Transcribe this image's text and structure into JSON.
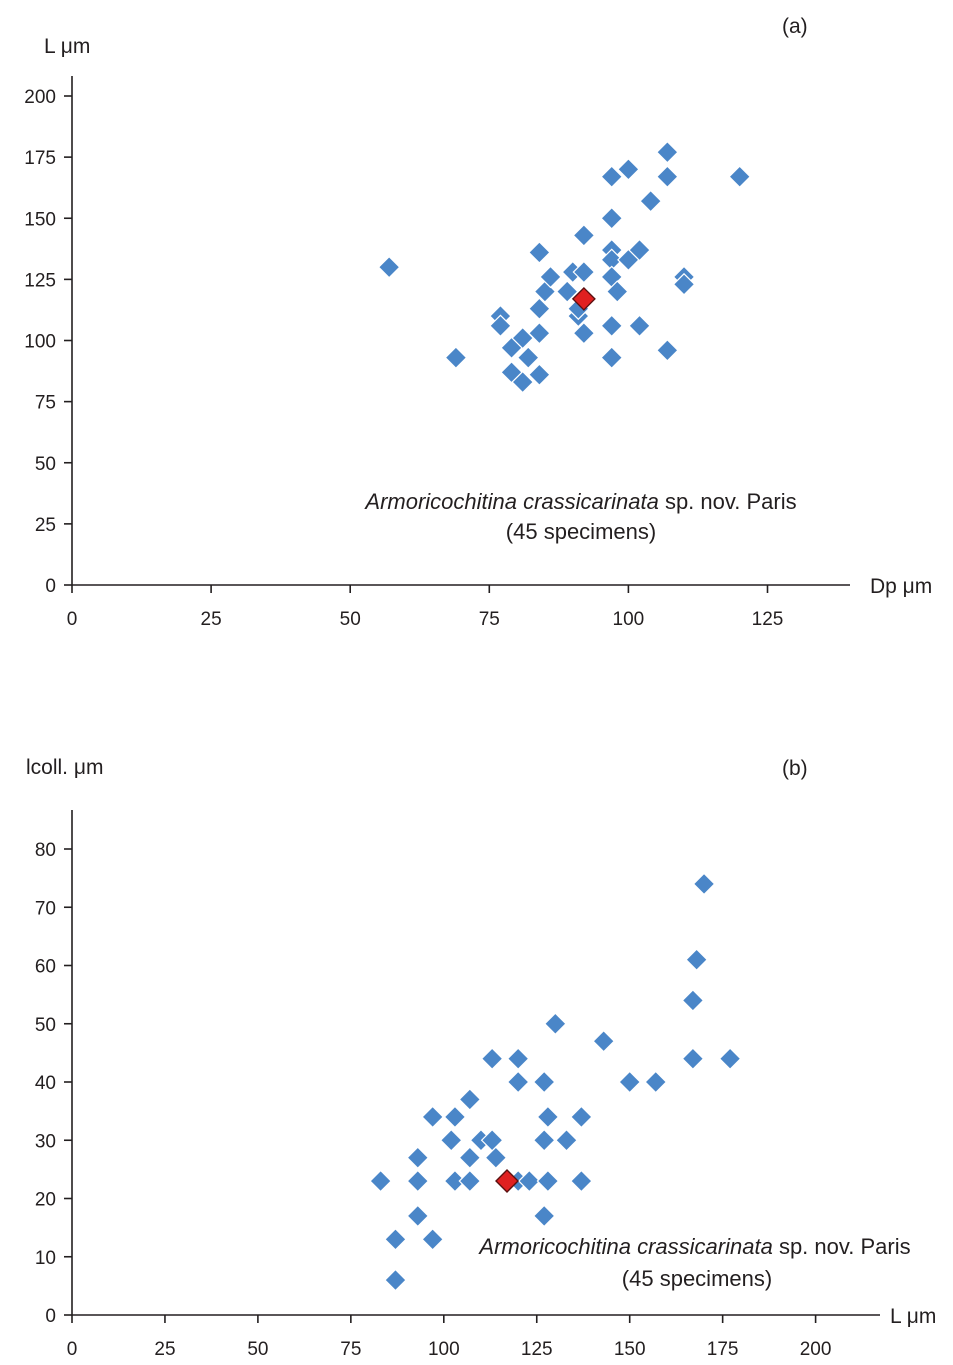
{
  "chart_data": [
    {
      "type": "scatter",
      "panel_label": "(a)",
      "xlabel": "Dp μm",
      "ylabel": "L μm",
      "xlim": [
        0,
        140
      ],
      "ylim": [
        0,
        200
      ],
      "xticks": [
        0,
        25,
        50,
        75,
        100,
        125
      ],
      "yticks": [
        0,
        25,
        50,
        75,
        100,
        125,
        150,
        175,
        200
      ],
      "grid": false,
      "annotation": {
        "species": "Armoricochitina crassicarinata",
        "suffix": " sp. nov. Paris",
        "count": "(45 specimens)"
      },
      "colors": {
        "points": "#4a86c8",
        "type_specimen": "#e02020"
      },
      "series": [
        {
          "name": "",
          "points": [
            [
              57,
              130
            ],
            [
              69,
              93
            ],
            [
              77,
              110
            ],
            [
              77,
              106
            ],
            [
              79,
              97
            ],
            [
              79,
              87
            ],
            [
              81,
              101
            ],
            [
              81,
              83
            ],
            [
              82,
              93
            ],
            [
              84,
              136
            ],
            [
              84,
              113
            ],
            [
              84,
              103
            ],
            [
              84,
              86
            ],
            [
              85,
              120
            ],
            [
              86,
              126
            ],
            [
              89,
              120
            ],
            [
              90,
              128
            ],
            [
              91,
              110
            ],
            [
              91,
              113
            ],
            [
              92,
              143
            ],
            [
              92,
              128
            ],
            [
              92,
              103
            ],
            [
              97,
              167
            ],
            [
              97,
              150
            ],
            [
              97,
              137
            ],
            [
              97,
              133
            ],
            [
              97,
              126
            ],
            [
              97,
              106
            ],
            [
              97,
              93
            ],
            [
              98,
              120
            ],
            [
              100,
              170
            ],
            [
              100,
              133
            ],
            [
              102,
              137
            ],
            [
              102,
              106
            ],
            [
              104,
              157
            ],
            [
              107,
              177
            ],
            [
              107,
              167
            ],
            [
              107,
              96
            ],
            [
              110,
              126
            ],
            [
              110,
              123
            ],
            [
              120,
              167
            ]
          ]
        },
        {
          "name": "",
          "type_specimen": true,
          "points": [
            [
              92,
              117
            ]
          ]
        }
      ]
    },
    {
      "type": "scatter",
      "panel_label": "(b)",
      "xlabel": "L μm",
      "ylabel": "lcoll. μm",
      "xlim": [
        0,
        215
      ],
      "ylim": [
        0,
        85
      ],
      "xticks": [
        0,
        25,
        50,
        75,
        100,
        125,
        150,
        175,
        200
      ],
      "yticks": [
        0,
        10,
        20,
        30,
        40,
        50,
        60,
        70,
        80
      ],
      "grid": false,
      "annotation": {
        "species": "Armoricochitina crassicarinata",
        "suffix": " sp. nov. Paris",
        "count": "(45 specimens)"
      },
      "colors": {
        "points": "#4a86c8",
        "type_specimen": "#e02020"
      },
      "series": [
        {
          "name": "",
          "points": [
            [
              83,
              23
            ],
            [
              87,
              13
            ],
            [
              87,
              6
            ],
            [
              93,
              27
            ],
            [
              93,
              23
            ],
            [
              93,
              17
            ],
            [
              97,
              34
            ],
            [
              97,
              13
            ],
            [
              102,
              30
            ],
            [
              103,
              34
            ],
            [
              103,
              23
            ],
            [
              107,
              37
            ],
            [
              107,
              27
            ],
            [
              107,
              23
            ],
            [
              110,
              30
            ],
            [
              113,
              44
            ],
            [
              113,
              30
            ],
            [
              114,
              27
            ],
            [
              120,
              44
            ],
            [
              120,
              40
            ],
            [
              120,
              23
            ],
            [
              123,
              23
            ],
            [
              127,
              40
            ],
            [
              127,
              30
            ],
            [
              127,
              17
            ],
            [
              128,
              34
            ],
            [
              128,
              23
            ],
            [
              130,
              50
            ],
            [
              133,
              30
            ],
            [
              137,
              34
            ],
            [
              137,
              23
            ],
            [
              143,
              47
            ],
            [
              150,
              40
            ],
            [
              157,
              40
            ],
            [
              167,
              54
            ],
            [
              167,
              44
            ],
            [
              168,
              61
            ],
            [
              170,
              74
            ],
            [
              177,
              44
            ]
          ]
        },
        {
          "name": "",
          "type_specimen": true,
          "points": [
            [
              117,
              23
            ]
          ]
        }
      ]
    }
  ]
}
